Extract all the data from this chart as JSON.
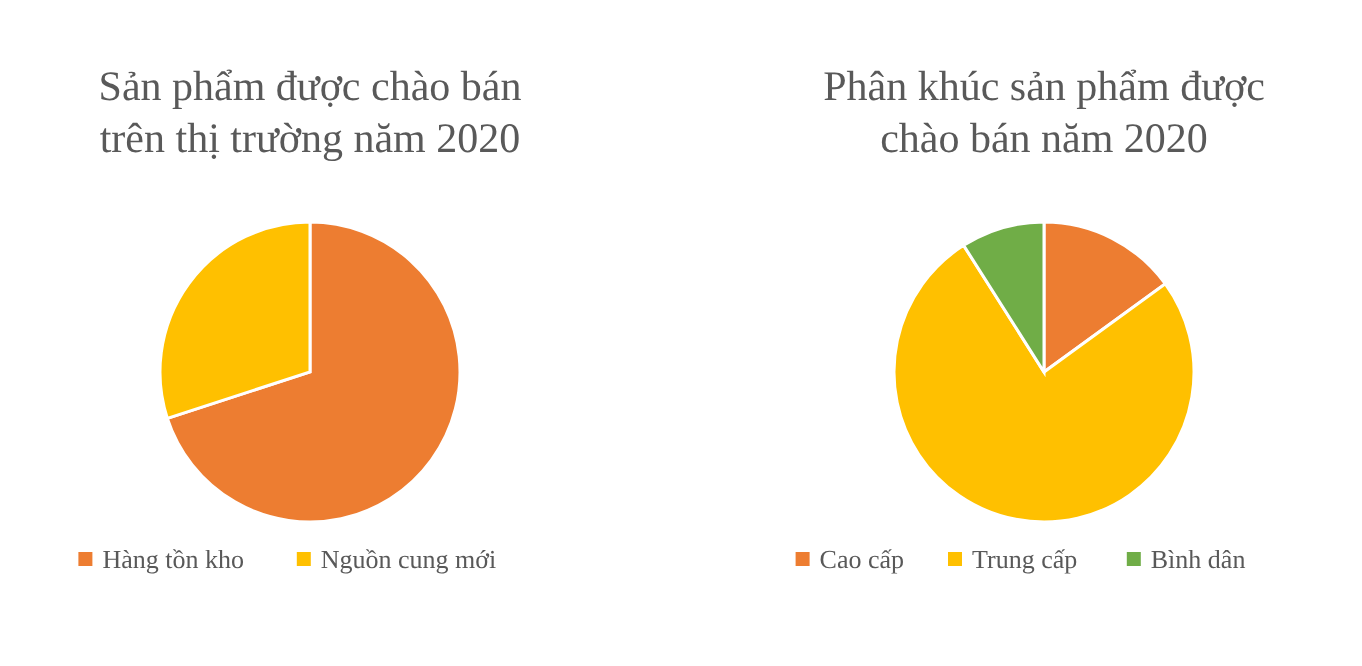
{
  "chart_data": [
    {
      "type": "pie",
      "title": "Sản phẩm được chào bán trên thị trường năm 2020",
      "categories": [
        "Hàng tồn kho",
        "Nguồn cung mới"
      ],
      "values": [
        70,
        30
      ],
      "colors": [
        "#ed7d31",
        "#ffc000"
      ],
      "legend": "bottom"
    },
    {
      "type": "pie",
      "title": "Phân khúc sản phẩm được chào bán năm 2020",
      "categories": [
        "Cao cấp",
        "Trung cấp",
        "Bình dân"
      ],
      "values": [
        15,
        76,
        9
      ],
      "colors": [
        "#ed7d31",
        "#ffc000",
        "#70ad47"
      ],
      "legend": "bottom"
    }
  ]
}
